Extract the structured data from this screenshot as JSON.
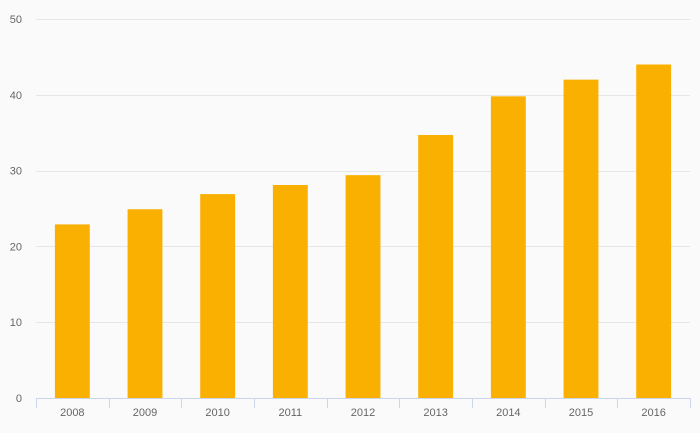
{
  "chart_data": {
    "type": "bar",
    "title": "",
    "xlabel": "",
    "ylabel": "",
    "categories": [
      "2008",
      "2009",
      "2010",
      "2011",
      "2012",
      "2013",
      "2014",
      "2015",
      "2016"
    ],
    "series": [
      {
        "values": [
          22.9,
          24.9,
          26.9,
          28.1,
          29.4,
          34.7,
          39.8,
          42.0,
          44.0
        ]
      }
    ],
    "ylim": [
      0,
      50
    ],
    "yticks": [
      0,
      10,
      20,
      30,
      40,
      50
    ],
    "grid": true,
    "legend": "none",
    "colors": {
      "bar": "#F9B000",
      "grid": "#e6e6e6",
      "axis": "#ccd6eb",
      "tick_text": "#666666",
      "background": "#fafafa"
    }
  }
}
